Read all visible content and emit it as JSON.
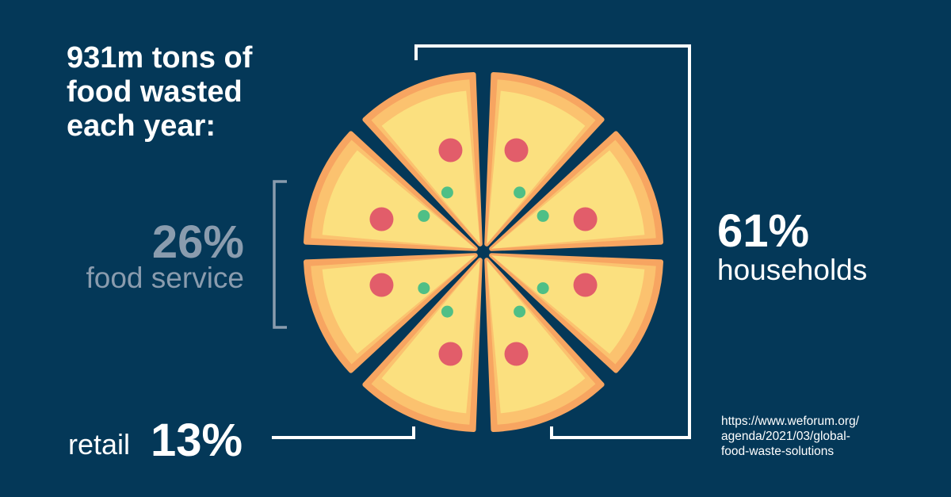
{
  "title_lines": [
    "931m tons of",
    "food wasted",
    "each year:"
  ],
  "source_lines": [
    "https://www.weforum.org/",
    "agenda/2021/03/global-",
    "food-waste-solutions"
  ],
  "colors": {
    "background": "#043858",
    "crust": "#f7a561",
    "crust_light": "#fbc26f",
    "cheese": "#fbe07f",
    "pepperoni": "#e25d6a",
    "herb": "#4fbf86",
    "muted_text": "#8a9cae"
  },
  "chart_data": {
    "type": "pie",
    "title": "931m tons of food wasted each year:",
    "slices_visual": 8,
    "series": [
      {
        "name": "households",
        "value": 61,
        "label": "61%"
      },
      {
        "name": "food service",
        "value": 26,
        "label": "26%"
      },
      {
        "name": "retail",
        "value": 13,
        "label": "13%"
      }
    ]
  }
}
